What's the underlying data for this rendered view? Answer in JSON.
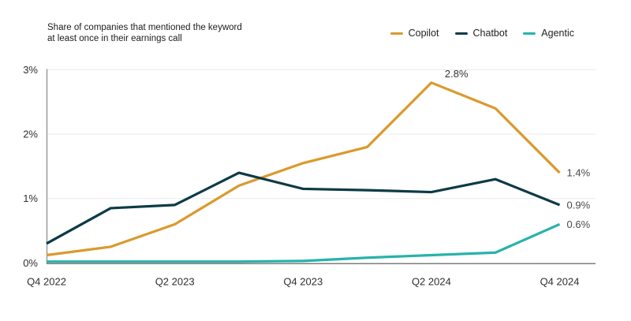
{
  "chart_data": {
    "type": "line",
    "title": "Share of companies that mentioned the keyword at least once in their earnings call",
    "x": [
      "Q4 2022",
      "Q1 2023",
      "Q2 2023",
      "Q3 2023",
      "Q4 2023",
      "Q1 2024",
      "Q2 2024",
      "Q3 2024",
      "Q4 2024"
    ],
    "x_tick_indices": [
      0,
      2,
      4,
      6,
      8
    ],
    "x_tick_labels": [
      "Q4 2022",
      "Q2 2023",
      "Q4 2023",
      "Q2 2024",
      "Q4 2024"
    ],
    "y_ticks": [
      {
        "value": 0,
        "label": "0%"
      },
      {
        "value": 1,
        "label": "1%"
      },
      {
        "value": 2,
        "label": "2%"
      },
      {
        "value": 3,
        "label": "3%"
      }
    ],
    "ylim": [
      0,
      3
    ],
    "grid": true,
    "legend_position": "top-right",
    "series": [
      {
        "name": "Copilot",
        "color": "#DA9A2D",
        "values": [
          0.12,
          0.25,
          0.6,
          1.2,
          1.55,
          1.8,
          2.8,
          2.4,
          1.4
        ]
      },
      {
        "name": "Chatbot",
        "color": "#0D3B46",
        "values": [
          0.3,
          0.85,
          0.9,
          1.4,
          1.15,
          1.13,
          1.1,
          1.3,
          0.9
        ]
      },
      {
        "name": "Agentic",
        "color": "#28B2AB",
        "values": [
          0.02,
          0.02,
          0.02,
          0.02,
          0.03,
          0.08,
          0.12,
          0.16,
          0.6
        ]
      }
    ],
    "annotations": [
      {
        "text": "2.8%",
        "series": "Copilot",
        "point": 6,
        "placement": "above-right",
        "color": "#333333"
      },
      {
        "text": "1.4%",
        "series": "Copilot",
        "point": 8,
        "placement": "right",
        "color": "#4a4a4a"
      },
      {
        "text": "0.9%",
        "series": "Chatbot",
        "point": 8,
        "placement": "right",
        "color": "#4a4a4a"
      },
      {
        "text": "0.6%",
        "series": "Agentic",
        "point": 8,
        "placement": "right",
        "color": "#4a4a4a"
      }
    ],
    "colors": {
      "grid": "#ececec",
      "y_axis": "#9b9b9b",
      "x_axis": "#7e7e7e",
      "tick_text": "#2e2e2e",
      "subtitle_text": "#1c1c1c"
    }
  }
}
